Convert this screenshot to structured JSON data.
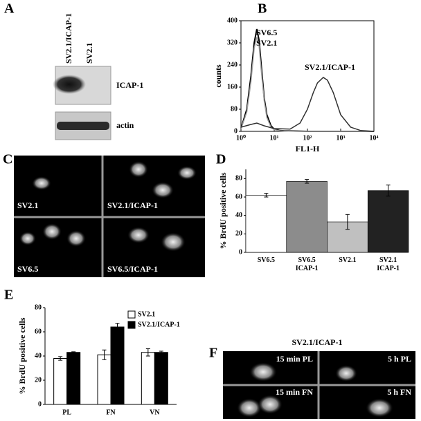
{
  "panels": {
    "A": {
      "letter": "A",
      "lanes": [
        "SV2.1/ICAP-1",
        "SV2.1"
      ],
      "bands": [
        "ICAP-1",
        "actin"
      ]
    },
    "B": {
      "letter": "B"
    },
    "C": {
      "letter": "C",
      "images": [
        "SV2.1",
        "SV2.1/ICAP-1",
        "SV6.5",
        "SV6.5/ICAP-1"
      ]
    },
    "D": {
      "letter": "D"
    },
    "E": {
      "letter": "E"
    },
    "F": {
      "letter": "F",
      "title": "SV2.1/ICAP-1",
      "images": [
        "15 min PL",
        "5 h PL",
        "15 min FN",
        "5 h FN"
      ]
    }
  },
  "chart_data": [
    {
      "type": "line",
      "x_label": "FL1-H",
      "y_label": "counts",
      "xscale": "log",
      "xlim": [
        1,
        10000
      ],
      "ylim": [
        0,
        400
      ],
      "xticks": [
        {
          "value": 1,
          "label": "10⁰"
        },
        {
          "value": 10,
          "label": "10¹"
        },
        {
          "value": 100,
          "label": "10²"
        },
        {
          "value": 1000,
          "label": "10³"
        },
        {
          "value": 10000,
          "label": "10⁴"
        }
      ],
      "yticks": [
        0,
        80,
        160,
        240,
        320,
        400
      ],
      "series": [
        {
          "name": "SV6.5",
          "color": "#000000",
          "x": [
            1,
            1.5,
            2,
            2.5,
            3,
            3.5,
            4,
            5,
            6,
            8,
            10,
            15,
            20,
            50,
            100,
            1000,
            10000
          ],
          "values": [
            10,
            80,
            200,
            320,
            370,
            330,
            250,
            120,
            60,
            20,
            8,
            3,
            2,
            1,
            0,
            0,
            0
          ]
        },
        {
          "name": "SV2.1",
          "color": "#a0a0a0",
          "x": [
            1,
            1.5,
            2,
            2.5,
            3,
            3.5,
            4,
            5,
            6,
            8,
            10,
            15,
            20,
            50,
            100,
            1000,
            10000
          ],
          "values": [
            8,
            70,
            180,
            300,
            340,
            310,
            230,
            110,
            50,
            15,
            6,
            2,
            1,
            0,
            0,
            0,
            0
          ]
        },
        {
          "name": "SV2.1/ICAP-1",
          "color": "#303030",
          "x": [
            1,
            2,
            3,
            5,
            10,
            30,
            60,
            100,
            150,
            200,
            300,
            400,
            600,
            1000,
            2000,
            4000,
            10000
          ],
          "values": [
            15,
            25,
            30,
            20,
            10,
            8,
            30,
            80,
            140,
            175,
            195,
            185,
            140,
            60,
            15,
            3,
            0
          ]
        }
      ]
    },
    {
      "type": "bar",
      "y_label": "% BrdU positive cells",
      "categories": [
        "SV6.5",
        "SV6.5\nICAP-1",
        "SV2.1",
        "SV2.1\nICAP-1"
      ],
      "values": [
        62,
        77,
        33,
        67
      ],
      "errors": [
        2,
        2,
        8,
        6
      ],
      "colors": [
        "#ffffff",
        "#8c8c8c",
        "#c0c0c0",
        "#222222"
      ],
      "ylim": [
        0,
        90
      ],
      "yticks": [
        0,
        20,
        40,
        60,
        80
      ]
    },
    {
      "type": "grouped_bar",
      "y_label": "% BrdU positive cells",
      "legend": "top-right",
      "categories": [
        "PL",
        "FN",
        "VN"
      ],
      "series": [
        {
          "name": "SV2.1",
          "color": "#ffffff",
          "values": [
            38,
            41,
            43
          ],
          "errors": [
            1.5,
            4,
            3
          ]
        },
        {
          "name": "SV2.1/ICAP-1",
          "color": "#000000",
          "values": [
            43,
            64,
            43
          ],
          "errors": [
            0.5,
            3,
            1
          ]
        }
      ],
      "ylim": [
        0,
        80
      ],
      "yticks": [
        0,
        20,
        40,
        60,
        80
      ]
    }
  ]
}
